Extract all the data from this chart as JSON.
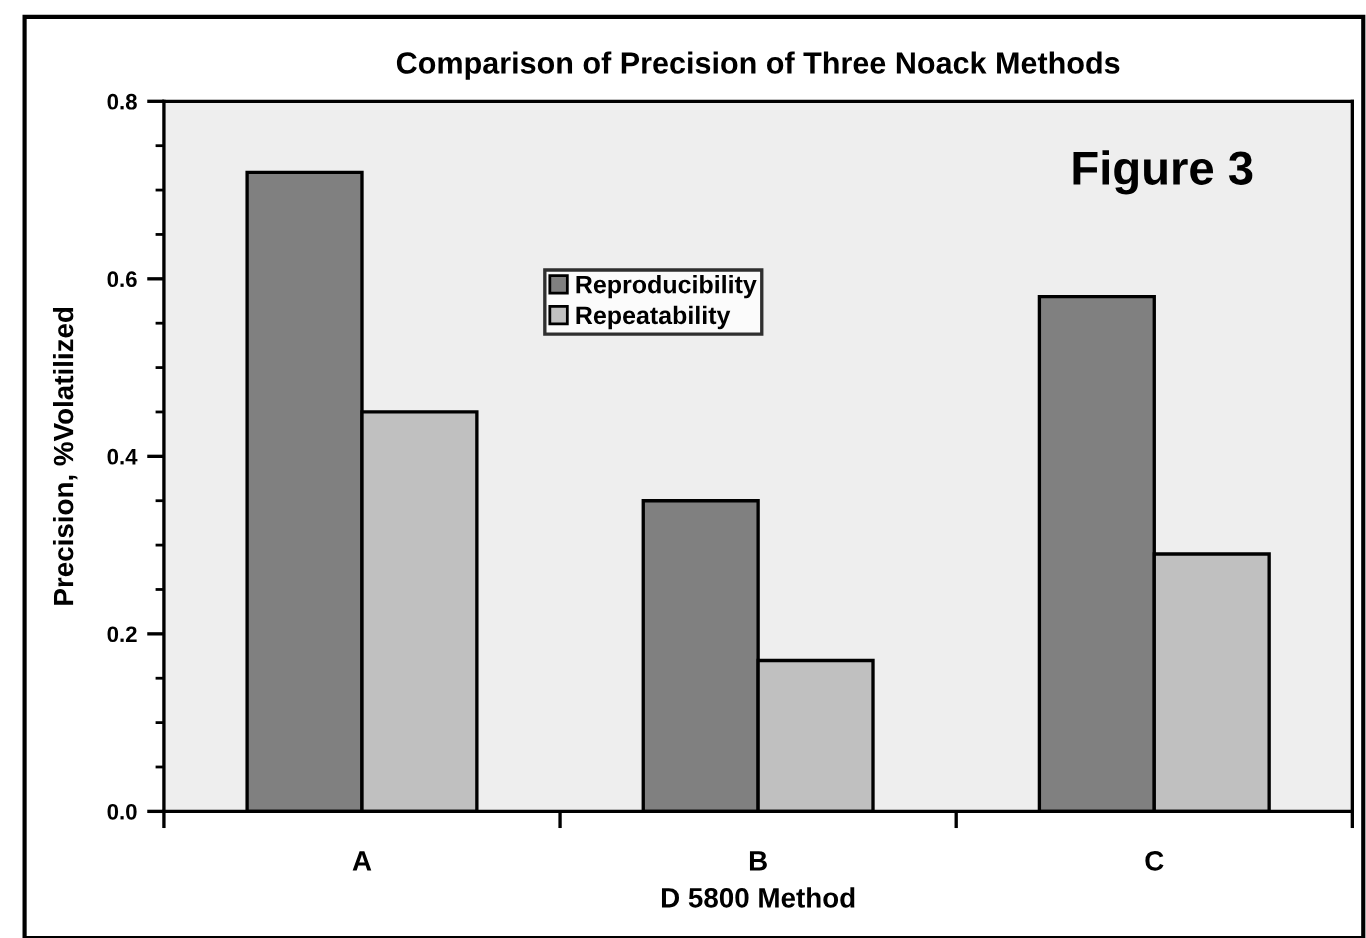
{
  "chart_data": {
    "type": "bar",
    "title": "Comparison of Precision of Three Noack Methods",
    "xlabel": "D 5800 Method",
    "ylabel": "Precision, %Volatilized",
    "categories": [
      "A",
      "B",
      "C"
    ],
    "series": [
      {
        "name": "Reproducibility",
        "color": "#808080",
        "values": [
          0.72,
          0.35,
          0.58
        ]
      },
      {
        "name": "Repeatability",
        "color": "#c0c0c0",
        "values": [
          0.45,
          0.17,
          0.29
        ]
      }
    ],
    "ylim": [
      0,
      0.8
    ],
    "yticks": [
      {
        "value": 0,
        "label": "0.0"
      },
      0.2,
      0.4,
      0.6,
      0.8
    ],
    "annotations": [
      "Figure 3"
    ],
    "legend": "top",
    "grid": false
  }
}
